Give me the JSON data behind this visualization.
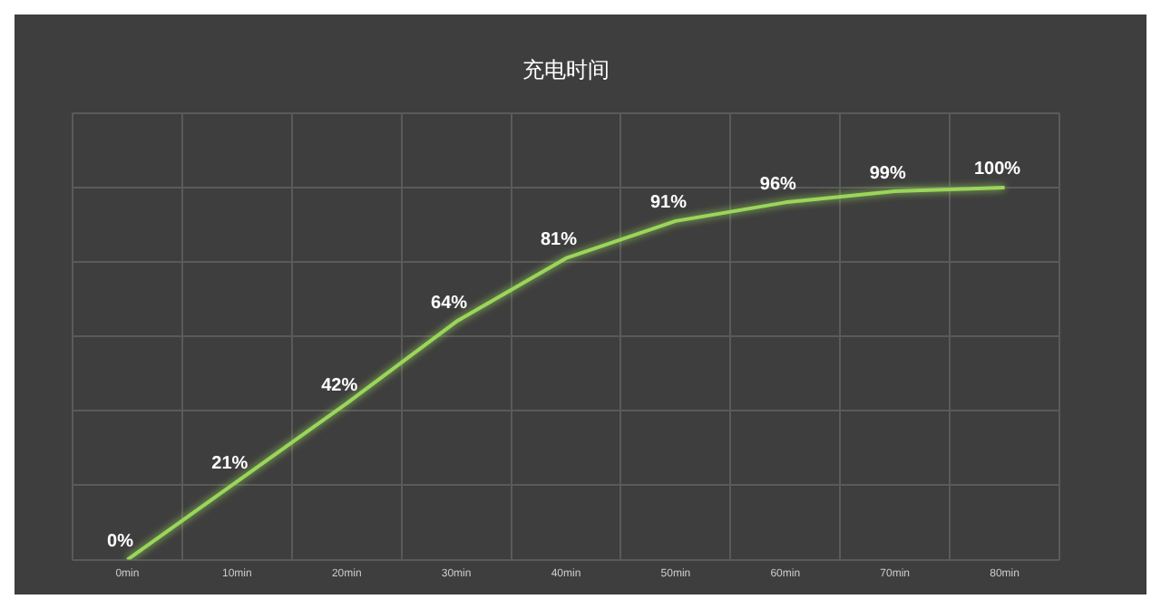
{
  "chart_data": {
    "type": "line",
    "title": "充电时间",
    "categories": [
      "0min",
      "10min",
      "20min",
      "30min",
      "40min",
      "50min",
      "60min",
      "70min",
      "80min"
    ],
    "series": [
      {
        "color": "#9ad65a",
        "values": [
          0,
          21,
          42,
          64,
          81,
          91,
          96,
          99,
          100
        ],
        "value_labels": [
          "0%",
          "21%",
          "42%",
          "64%",
          "81%",
          "91%",
          "96%",
          "99%",
          "100%"
        ]
      }
    ],
    "ylim": [
      0,
      120
    ],
    "yticks": [
      {
        "value": 0,
        "label": null
      },
      {
        "value": 20,
        "label": null
      },
      {
        "value": 40,
        "label": null
      },
      {
        "value": 60,
        "label": null
      },
      {
        "value": 80,
        "label": null
      },
      {
        "value": 100,
        "label": null
      },
      {
        "value": 120,
        "label": null
      }
    ],
    "grid": true,
    "legend": false,
    "marker": "none",
    "line_style": "solid",
    "tick_labels": "x"
  }
}
